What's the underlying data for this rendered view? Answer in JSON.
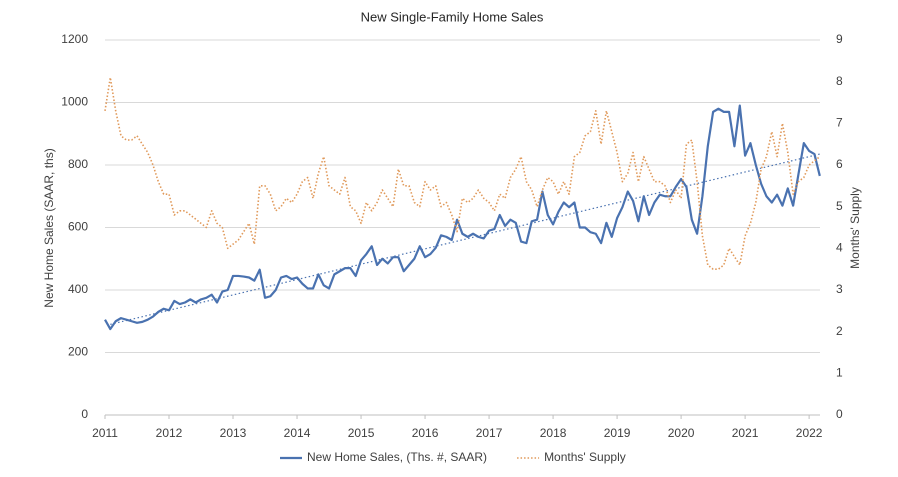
{
  "chart_data": {
    "type": "line",
    "title": "New Single-Family Home Sales",
    "y_label": "New Home Sales (SAAR, ths)",
    "y2_label": "Months' Supply",
    "xlim": [
      2011,
      2022.17
    ],
    "xticks": [
      2011,
      2012,
      2013,
      2014,
      2015,
      2016,
      2017,
      2018,
      2019,
      2020,
      2021,
      2022
    ],
    "ylim": [
      0,
      1200
    ],
    "yticks": [
      0,
      200,
      400,
      600,
      800,
      1000,
      1200
    ],
    "y2lim": [
      0,
      9
    ],
    "y2ticks": [
      0,
      1,
      2,
      3,
      4,
      5,
      6,
      7,
      8,
      9
    ],
    "grid": true,
    "legend": "bottom",
    "x": [
      2011.0,
      2011.083,
      2011.167,
      2011.25,
      2011.333,
      2011.417,
      2011.5,
      2011.583,
      2011.667,
      2011.75,
      2011.833,
      2011.917,
      2012.0,
      2012.083,
      2012.167,
      2012.25,
      2012.333,
      2012.417,
      2012.5,
      2012.583,
      2012.667,
      2012.75,
      2012.833,
      2012.917,
      2013.0,
      2013.083,
      2013.167,
      2013.25,
      2013.333,
      2013.417,
      2013.5,
      2013.583,
      2013.667,
      2013.75,
      2013.833,
      2013.917,
      2014.0,
      2014.083,
      2014.167,
      2014.25,
      2014.333,
      2014.417,
      2014.5,
      2014.583,
      2014.667,
      2014.75,
      2014.833,
      2014.917,
      2015.0,
      2015.083,
      2015.167,
      2015.25,
      2015.333,
      2015.417,
      2015.5,
      2015.583,
      2015.667,
      2015.75,
      2015.833,
      2015.917,
      2016.0,
      2016.083,
      2016.167,
      2016.25,
      2016.333,
      2016.417,
      2016.5,
      2016.583,
      2016.667,
      2016.75,
      2016.833,
      2016.917,
      2017.0,
      2017.083,
      2017.167,
      2017.25,
      2017.333,
      2017.417,
      2017.5,
      2017.583,
      2017.667,
      2017.75,
      2017.833,
      2017.917,
      2018.0,
      2018.083,
      2018.167,
      2018.25,
      2018.333,
      2018.417,
      2018.5,
      2018.583,
      2018.667,
      2018.75,
      2018.833,
      2018.917,
      2019.0,
      2019.083,
      2019.167,
      2019.25,
      2019.333,
      2019.417,
      2019.5,
      2019.583,
      2019.667,
      2019.75,
      2019.833,
      2019.917,
      2020.0,
      2020.083,
      2020.167,
      2020.25,
      2020.333,
      2020.417,
      2020.5,
      2020.583,
      2020.667,
      2020.75,
      2020.833,
      2020.917,
      2021.0,
      2021.083,
      2021.167,
      2021.25,
      2021.333,
      2021.417,
      2021.5,
      2021.583,
      2021.667,
      2021.75,
      2021.833,
      2021.917,
      2022.0,
      2022.083,
      2022.167
    ],
    "series": [
      {
        "name": "New Home Sales, (Ths. #, SAAR)",
        "color": "#4a72b0",
        "values": [
          305,
          275,
          300,
          310,
          305,
          300,
          295,
          298,
          305,
          315,
          330,
          340,
          335,
          365,
          355,
          360,
          370,
          360,
          370,
          375,
          385,
          360,
          395,
          400,
          445,
          445,
          443,
          440,
          430,
          465,
          375,
          380,
          400,
          440,
          445,
          435,
          440,
          420,
          405,
          405,
          450,
          415,
          405,
          450,
          460,
          470,
          470,
          445,
          495,
          515,
          540,
          480,
          500,
          485,
          505,
          505,
          460,
          480,
          500,
          540,
          505,
          515,
          535,
          575,
          570,
          560,
          625,
          580,
          570,
          580,
          570,
          565,
          590,
          595,
          640,
          605,
          625,
          615,
          555,
          550,
          620,
          625,
          715,
          640,
          610,
          650,
          680,
          665,
          680,
          600,
          600,
          585,
          580,
          550,
          615,
          570,
          630,
          665,
          715,
          685,
          620,
          700,
          640,
          680,
          705,
          700,
          700,
          730,
          755,
          730,
          625,
          580,
          700,
          860,
          970,
          980,
          970,
          970,
          860,
          990,
          830,
          870,
          800,
          740,
          700,
          680,
          705,
          670,
          725,
          670,
          770,
          870,
          845,
          835,
          765
        ]
      },
      {
        "name": "Months' Supply",
        "color": "#e0995a",
        "axis": "y2",
        "dash": true,
        "values": [
          7.3,
          8.1,
          7.3,
          6.7,
          6.6,
          6.6,
          6.7,
          6.5,
          6.3,
          6.0,
          5.6,
          5.3,
          5.3,
          4.8,
          4.9,
          4.9,
          4.8,
          4.7,
          4.6,
          4.5,
          4.9,
          4.6,
          4.5,
          4.0,
          4.1,
          4.2,
          4.4,
          4.6,
          4.1,
          5.5,
          5.5,
          5.3,
          4.9,
          5.0,
          5.2,
          5.1,
          5.3,
          5.6,
          5.7,
          5.2,
          5.8,
          6.2,
          5.5,
          5.4,
          5.3,
          5.7,
          5.0,
          4.9,
          4.6,
          5.1,
          4.9,
          5.1,
          5.4,
          5.2,
          5.0,
          5.9,
          5.5,
          5.5,
          5.1,
          5.0,
          5.6,
          5.4,
          5.5,
          5.0,
          5.1,
          4.8,
          4.4,
          5.2,
          5.1,
          5.2,
          5.4,
          5.2,
          5.1,
          4.9,
          5.3,
          5.2,
          5.7,
          5.9,
          6.2,
          5.6,
          5.4,
          5.0,
          5.4,
          5.7,
          5.6,
          5.3,
          5.6,
          5.3,
          6.2,
          6.3,
          6.7,
          6.8,
          7.3,
          6.5,
          7.3,
          6.8,
          6.3,
          5.6,
          5.8,
          6.3,
          5.6,
          6.2,
          5.9,
          5.6,
          5.6,
          5.5,
          5.1,
          5.4,
          5.2,
          6.5,
          6.6,
          5.6,
          4.3,
          3.6,
          3.5,
          3.5,
          3.6,
          4.0,
          3.8,
          3.6,
          4.3,
          4.6,
          5.1,
          5.9,
          6.2,
          6.8,
          6.2,
          7.0,
          6.3,
          5.3,
          5.6,
          5.7,
          6.0,
          6.1,
          6.2
        ]
      }
    ],
    "trendline": {
      "color": "#4a72b0",
      "x": [
        2011.083,
        2022.167
      ],
      "values": [
        290,
        835
      ]
    }
  }
}
